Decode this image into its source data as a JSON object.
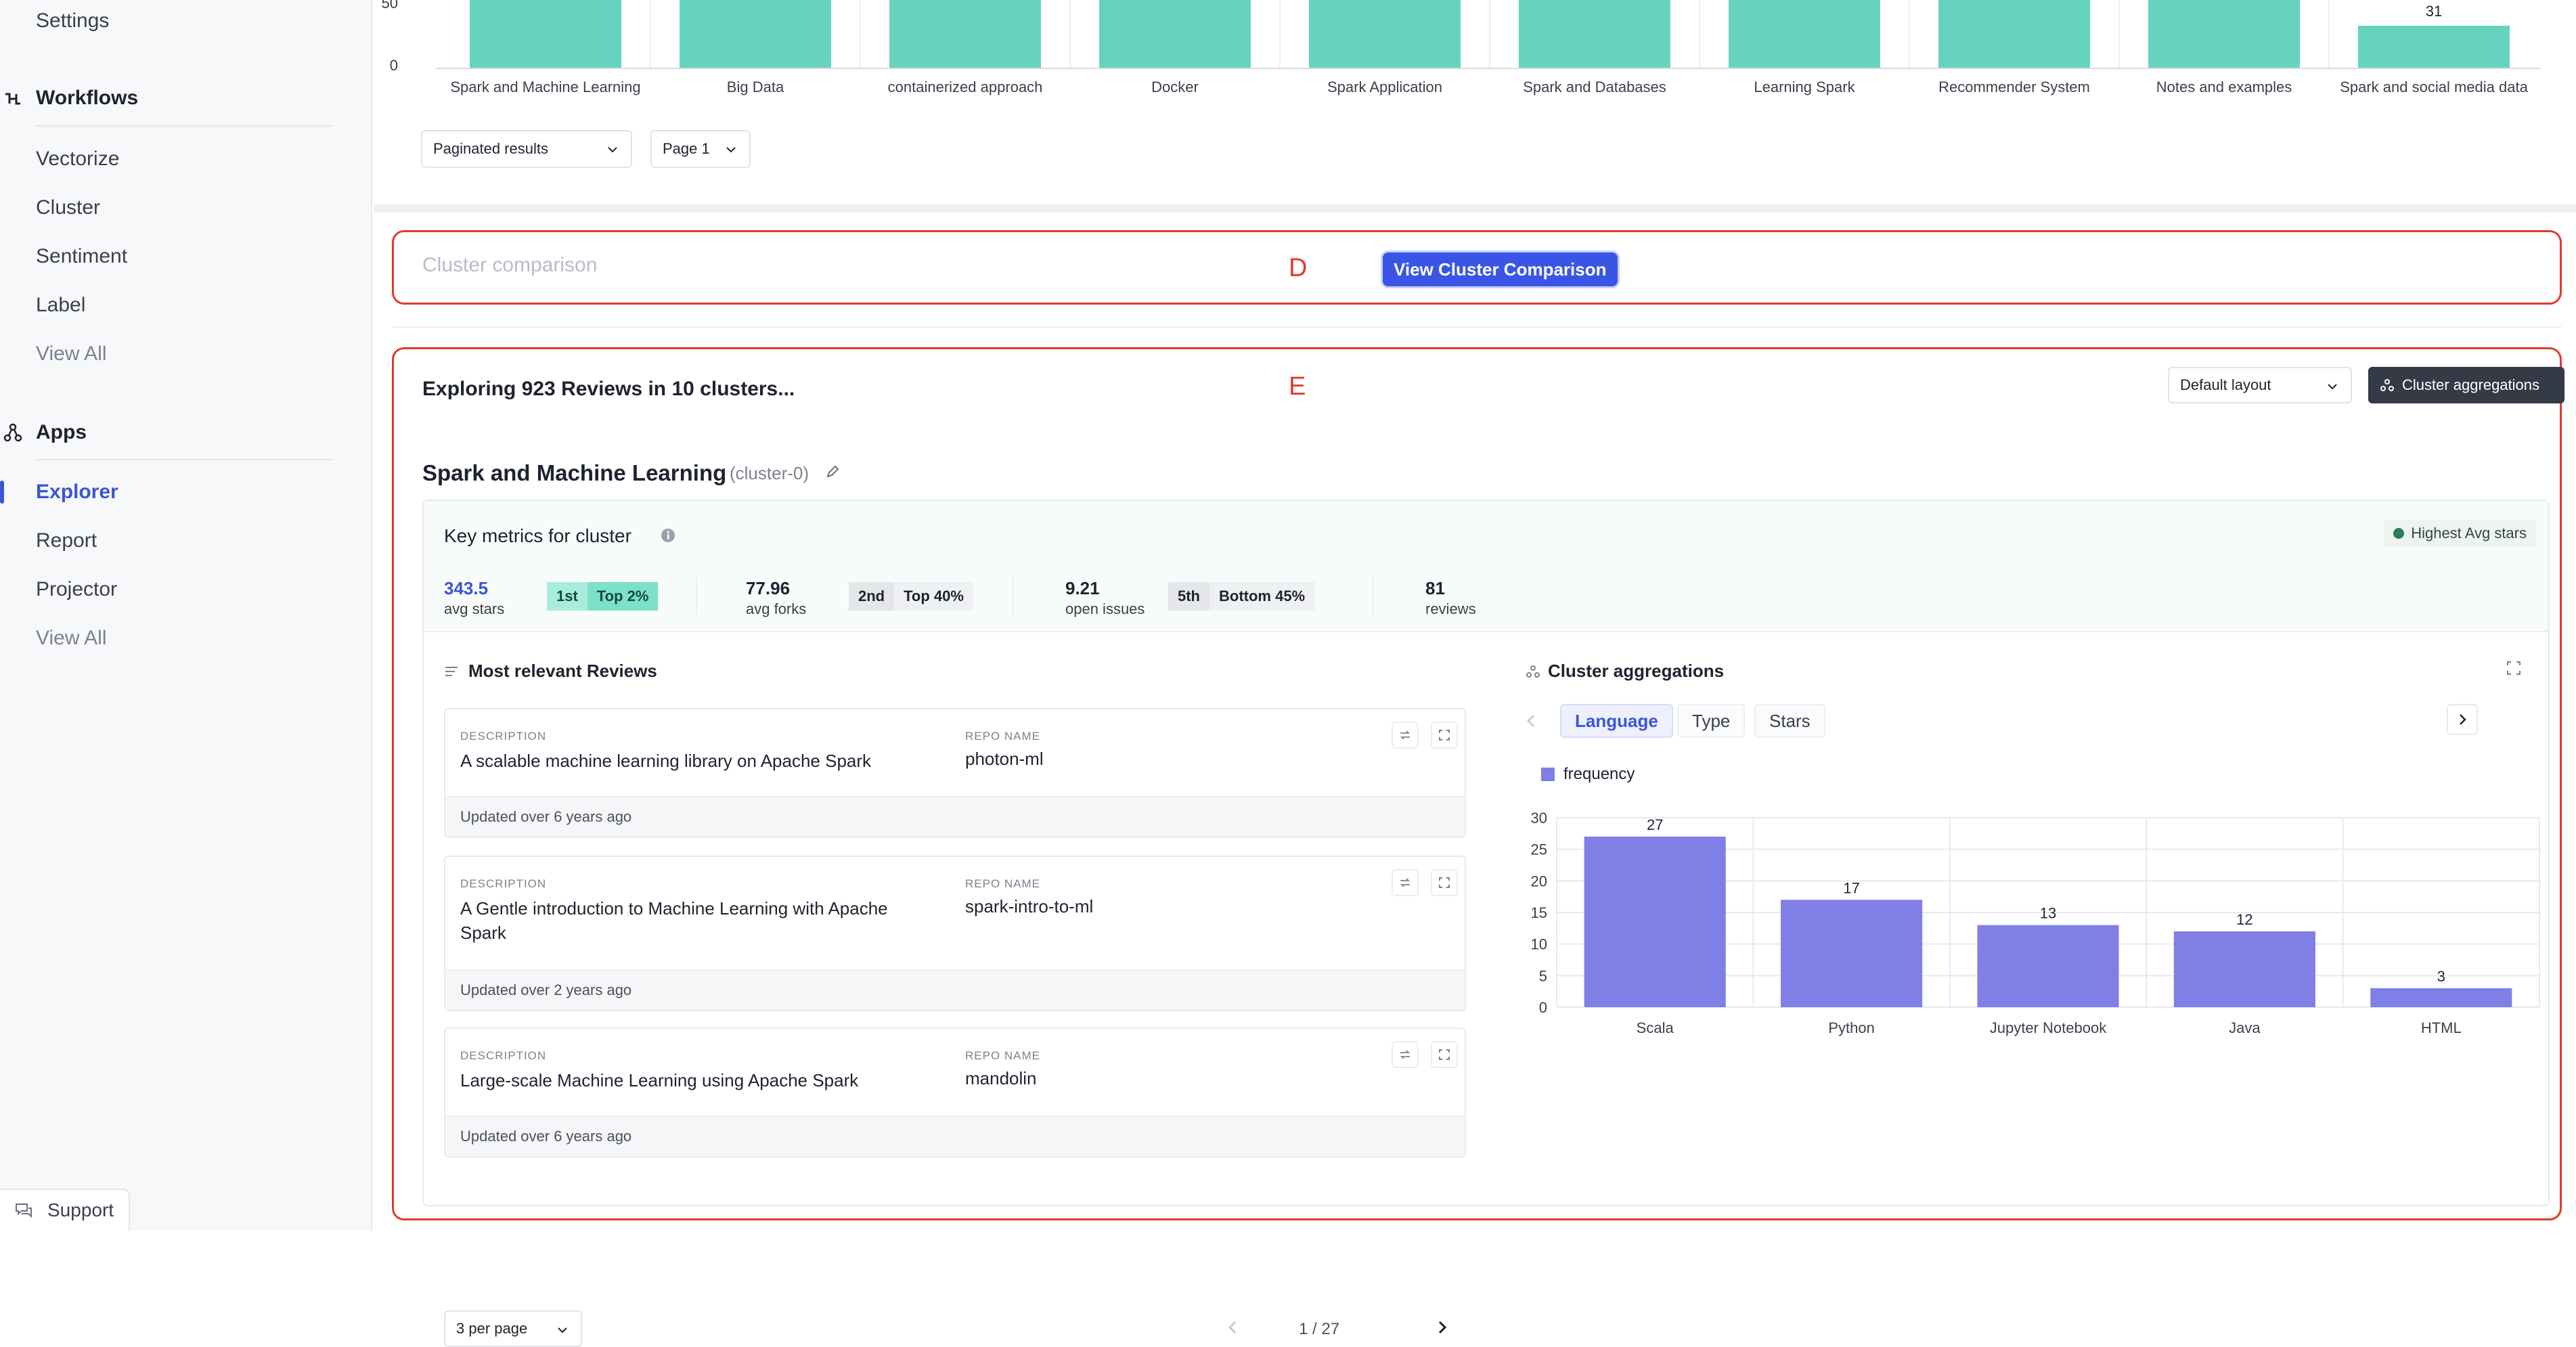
{
  "sidebar": {
    "settings": "Settings",
    "workflows": {
      "title": "Workflows",
      "items": [
        "Vectorize",
        "Cluster",
        "Sentiment",
        "Label",
        "View All"
      ]
    },
    "apps": {
      "title": "Apps",
      "items": [
        "Explorer",
        "Report",
        "Projector",
        "View All"
      ],
      "active": "Explorer"
    },
    "support": "Support"
  },
  "top_chart": {
    "y_ticks": [
      "50",
      "0"
    ],
    "categories": [
      "Spark and Machine Learning",
      "Big Data",
      "containerized approach",
      "Docker",
      "Spark Application",
      "Spark and Databases",
      "Learning Spark",
      "Recommender System",
      "Notes and examples",
      "Spark and social media data"
    ],
    "last_value_label": "31",
    "controls": {
      "pagination": "Paginated results",
      "page": "Page 1"
    }
  },
  "section_d": {
    "title": "Cluster comparison",
    "label": "D",
    "button": "View Cluster Comparison"
  },
  "section_e": {
    "label": "E",
    "title": "Exploring 923 Reviews in 10 clusters...",
    "layout_select": "Default layout",
    "aggregations_button": "Cluster aggregations",
    "cluster": {
      "name": "Spark and Machine Learning",
      "id": "(cluster-0)"
    },
    "key_metrics": {
      "title": "Key metrics for cluster",
      "badge": "Highest Avg stars",
      "metrics": [
        {
          "value": "343.5",
          "label": "avg stars",
          "rank": "1st",
          "tier": "Top 2%"
        },
        {
          "value": "77.96",
          "label": "avg forks",
          "rank": "2nd",
          "tier": "Top 40%"
        },
        {
          "value": "9.21",
          "label": "open issues",
          "rank": "5th",
          "tier": "Bottom 45%"
        },
        {
          "value": "81",
          "label": "reviews"
        }
      ]
    },
    "reviews": {
      "title": "Most relevant Reviews",
      "desc_caption": "DESCRIPTION",
      "repo_caption": "REPO NAME",
      "items": [
        {
          "description": "A scalable machine learning library on Apache Spark",
          "repo": "photon-ml",
          "updated": "Updated over 6 years ago"
        },
        {
          "description": "A Gentle introduction to Machine Learning with Apache Spark",
          "repo": "spark-intro-to-ml",
          "updated": "Updated over 2 years ago"
        },
        {
          "description": "Large-scale Machine Learning using Apache Spark",
          "repo": "mandolin",
          "updated": "Updated over 6 years ago"
        }
      ],
      "per_page": "3 per page",
      "page_indicator": "1 / 27"
    },
    "aggregations": {
      "title": "Cluster aggregations",
      "tabs": [
        "Language",
        "Type",
        "Stars"
      ],
      "active_tab": "Language",
      "legend": "frequency"
    }
  },
  "chart_data": {
    "type": "bar",
    "categories": [
      "Scala",
      "Python",
      "Jupyter Notebook",
      "Java",
      "HTML"
    ],
    "series": [
      {
        "name": "frequency",
        "values": [
          27,
          17,
          13,
          12,
          3
        ]
      }
    ],
    "ylim": [
      0,
      30
    ],
    "y_ticks": [
      0,
      5,
      10,
      15,
      20,
      25,
      30
    ],
    "grid": true,
    "color": "#7f7fe6"
  },
  "colors": {
    "accent": "#3a55d6",
    "section_outline": "#e03a2e",
    "top_bar": "#66d3bf",
    "agg_bar": "#7f7fe6"
  }
}
